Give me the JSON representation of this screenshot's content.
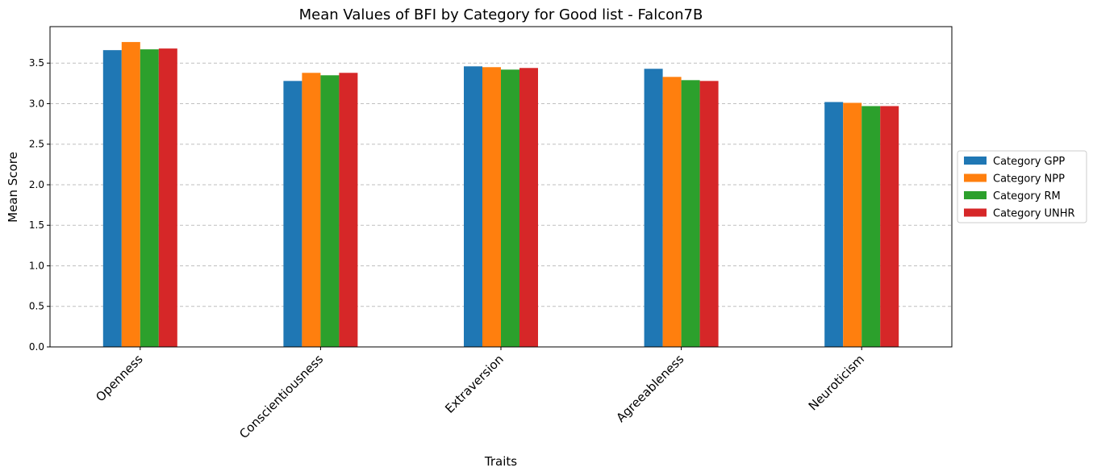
{
  "chart_data": {
    "type": "bar",
    "title": "Mean Values of BFI by Category for Good list - Falcon7B",
    "xlabel": "Traits",
    "ylabel": "Mean Score",
    "categories": [
      "Openness",
      "Conscientiousness",
      "Extraversion",
      "Agreeableness",
      "Neuroticism"
    ],
    "series": [
      {
        "name": "Category GPP",
        "color": "#1f77b4",
        "values": [
          3.66,
          3.28,
          3.46,
          3.43,
          3.02
        ]
      },
      {
        "name": "Category NPP",
        "color": "#ff7f0e",
        "values": [
          3.76,
          3.38,
          3.45,
          3.33,
          3.01
        ]
      },
      {
        "name": "Category RM",
        "color": "#2ca02c",
        "values": [
          3.67,
          3.35,
          3.42,
          3.29,
          2.97
        ]
      },
      {
        "name": "Category UNHR",
        "color": "#d62728",
        "values": [
          3.68,
          3.38,
          3.44,
          3.28,
          2.97
        ]
      }
    ],
    "ylim": [
      0,
      3.95
    ],
    "yticks": [
      "0.0",
      "0.5",
      "1.0",
      "1.5",
      "2.0",
      "2.5",
      "3.0",
      "3.5"
    ],
    "grid": "y-dashed",
    "legend_position": "right-outside"
  }
}
